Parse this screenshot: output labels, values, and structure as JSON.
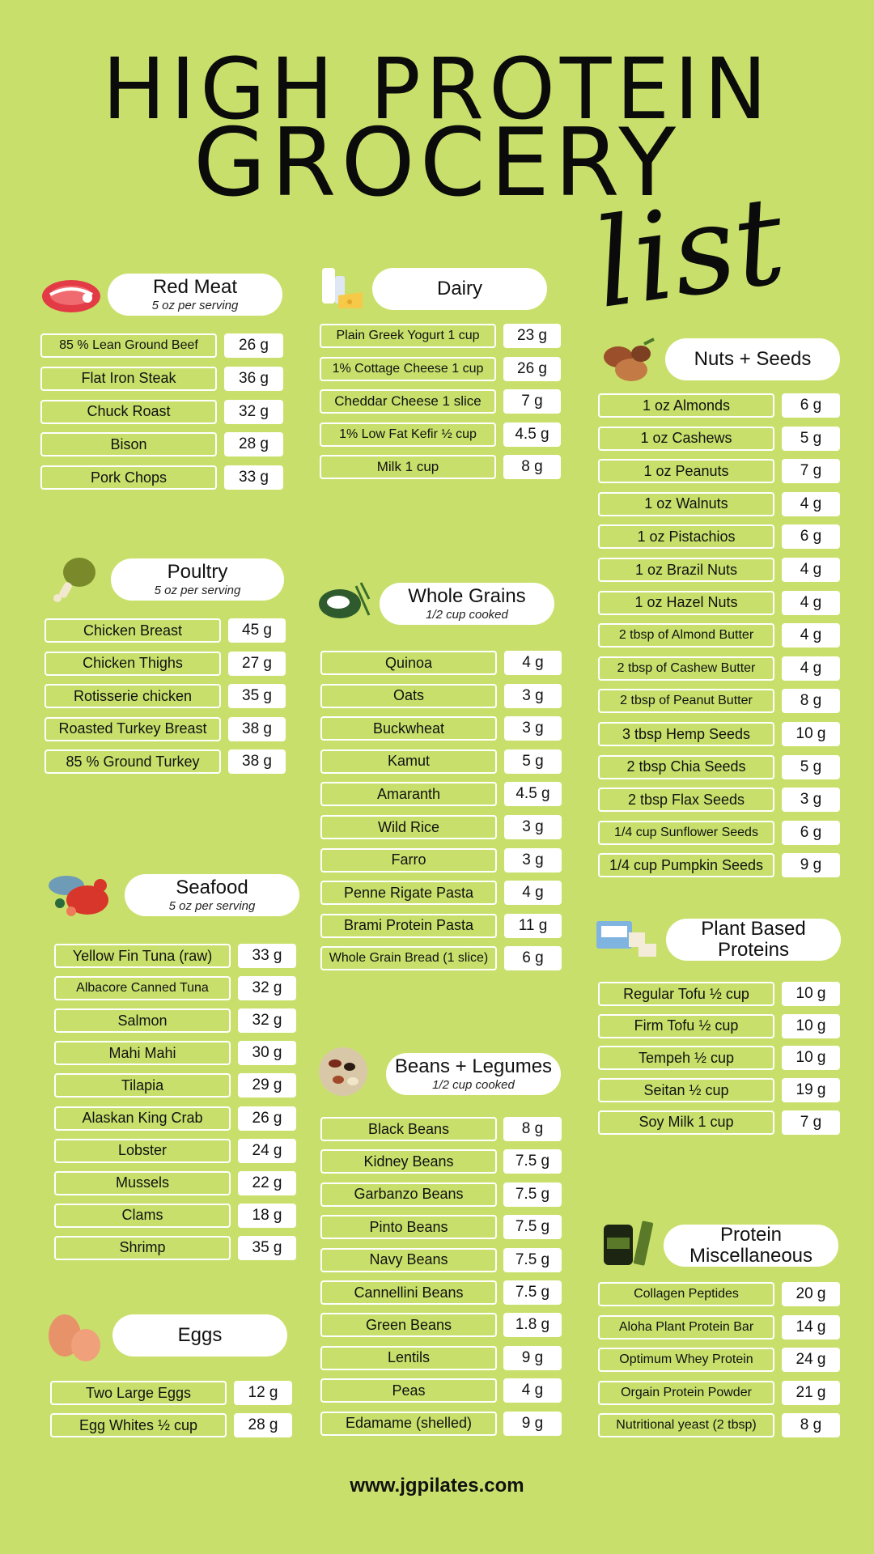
{
  "title": {
    "line1": "HIGH PROTEIN",
    "line2": "GROCERY",
    "line3": "list"
  },
  "footer": "www.jgpilates.com",
  "colors": {
    "background": "#c8e06b",
    "pill": "#ffffff",
    "text": "#111111"
  },
  "sections": [
    {
      "key": "red_meat",
      "name": "Red Meat",
      "sub": "5 oz per serving",
      "icon": "steak-icon",
      "items": [
        [
          "85 % Lean Ground Beef",
          "26 g"
        ],
        [
          "Flat Iron Steak",
          "36 g"
        ],
        [
          "Chuck Roast",
          "32 g"
        ],
        [
          "Bison",
          "28 g"
        ],
        [
          "Pork Chops",
          "33 g"
        ]
      ]
    },
    {
      "key": "dairy",
      "name": "Dairy",
      "sub": "",
      "icon": "milk-cheese-icon",
      "items": [
        [
          "Plain Greek Yogurt 1 cup",
          "23 g"
        ],
        [
          "1% Cottage Cheese 1 cup",
          "26 g"
        ],
        [
          "Cheddar Cheese 1 slice",
          "7 g"
        ],
        [
          "1% Low Fat Kefir ½ cup",
          "4.5 g"
        ],
        [
          "Milk 1 cup",
          "8 g"
        ]
      ]
    },
    {
      "key": "nuts_seeds",
      "name": "Nuts + Seeds",
      "sub": "",
      "icon": "nuts-icon",
      "items": [
        [
          "1 oz Almonds",
          "6 g"
        ],
        [
          "1 oz Cashews",
          "5 g"
        ],
        [
          "1 oz Peanuts",
          "7 g"
        ],
        [
          "1 oz Walnuts",
          "4 g"
        ],
        [
          "1 oz Pistachios",
          "6 g"
        ],
        [
          "1 oz Brazil Nuts",
          "4 g"
        ],
        [
          "1 oz Hazel Nuts",
          "4 g"
        ],
        [
          "2 tbsp of Almond Butter",
          "4 g"
        ],
        [
          "2 tbsp of Cashew Butter",
          "4 g"
        ],
        [
          "2 tbsp of Peanut Butter",
          "8 g"
        ],
        [
          "3 tbsp Hemp Seeds",
          "10 g"
        ],
        [
          "2 tbsp Chia Seeds",
          "5 g"
        ],
        [
          "2 tbsp  Flax Seeds",
          "3 g"
        ],
        [
          "1/4 cup Sunflower Seeds",
          "6 g"
        ],
        [
          "1/4 cup Pumpkin Seeds",
          "9 g"
        ]
      ]
    },
    {
      "key": "poultry",
      "name": "Poultry",
      "sub": "5 oz per serving",
      "icon": "drumstick-icon",
      "items": [
        [
          "Chicken Breast",
          "45 g"
        ],
        [
          "Chicken Thighs",
          "27 g"
        ],
        [
          "Rotisserie chicken",
          "35 g"
        ],
        [
          "Roasted Turkey Breast",
          "38 g"
        ],
        [
          "85 % Ground Turkey",
          "38 g"
        ]
      ]
    },
    {
      "key": "whole_grains",
      "name": "Whole Grains",
      "sub": "1/2 cup cooked",
      "icon": "grains-icon",
      "items": [
        [
          "Quinoa",
          "4 g"
        ],
        [
          "Oats",
          "3 g"
        ],
        [
          "Buckwheat",
          "3 g"
        ],
        [
          "Kamut",
          "5 g"
        ],
        [
          "Amaranth",
          "4.5 g"
        ],
        [
          "Wild Rice",
          "3 g"
        ],
        [
          "Farro",
          "3 g"
        ],
        [
          "Penne Rigate Pasta",
          "4 g"
        ],
        [
          "Brami Protein Pasta",
          "11 g"
        ],
        [
          "Whole Grain Bread (1 slice)",
          "6 g"
        ]
      ]
    },
    {
      "key": "seafood",
      "name": "Seafood",
      "sub": "5 oz per serving",
      "icon": "lobster-fish-icon",
      "items": [
        [
          "Yellow Fin Tuna (raw)",
          "33 g"
        ],
        [
          "Albacore Canned Tuna",
          "32 g"
        ],
        [
          "Salmon",
          "32 g"
        ],
        [
          "Mahi Mahi",
          "30 g"
        ],
        [
          "Tilapia",
          "29 g"
        ],
        [
          "Alaskan King Crab",
          "26 g"
        ],
        [
          "Lobster",
          "24 g"
        ],
        [
          "Mussels",
          "22 g"
        ],
        [
          "Clams",
          "18  g"
        ],
        [
          "Shrimp",
          "35 g"
        ]
      ]
    },
    {
      "key": "plant_based",
      "name": "Plant Based Proteins",
      "sub": "",
      "icon": "tofu-icon",
      "items": [
        [
          "Regular Tofu ½ cup",
          "10 g"
        ],
        [
          "Firm Tofu ½ cup",
          "10 g"
        ],
        [
          "Tempeh ½ cup",
          "10 g"
        ],
        [
          "Seitan  ½ cup",
          "19 g"
        ],
        [
          "Soy Milk 1 cup",
          "7 g"
        ]
      ]
    },
    {
      "key": "beans",
      "name": "Beans + Legumes",
      "sub": "1/2 cup cooked",
      "icon": "beans-icon",
      "items": [
        [
          "Black Beans",
          "8 g"
        ],
        [
          "Kidney Beans",
          "7.5 g"
        ],
        [
          "Garbanzo  Beans",
          "7.5 g"
        ],
        [
          "Pinto Beans",
          "7.5 g"
        ],
        [
          "Navy  Beans",
          "7.5 g"
        ],
        [
          "Cannellini Beans",
          "7.5 g"
        ],
        [
          "Green Beans",
          "1.8 g"
        ],
        [
          "Lentils",
          "9 g"
        ],
        [
          "Peas",
          "4 g"
        ],
        [
          "Edamame (shelled)",
          "9 g"
        ]
      ]
    },
    {
      "key": "eggs",
      "name": "Eggs",
      "sub": "",
      "icon": "eggs-icon",
      "items": [
        [
          "Two Large Eggs",
          "12 g"
        ],
        [
          "Egg Whites ½ cup",
          "28 g"
        ]
      ]
    },
    {
      "key": "misc",
      "name": "Protein Miscellaneous",
      "sub": "",
      "icon": "protein-jar-bar-icon",
      "items": [
        [
          "Collagen Peptides",
          "20 g"
        ],
        [
          "Aloha Plant Protein Bar",
          "14 g"
        ],
        [
          "Optimum Whey Protein",
          "24 g"
        ],
        [
          "Orgain Protein Powder",
          "21 g"
        ],
        [
          "Nutritional yeast (2 tbsp)",
          "8 g"
        ]
      ]
    }
  ]
}
